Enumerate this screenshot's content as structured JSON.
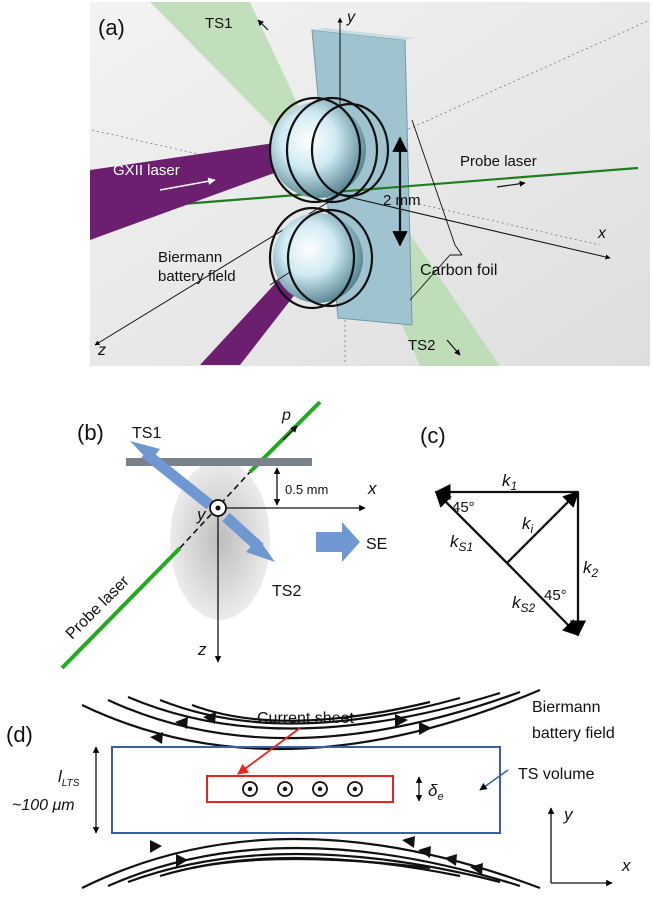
{
  "panel_a": {
    "tag": "(a)",
    "ts1": "TS1",
    "ts2": "TS2",
    "axis_y": "y",
    "axis_x": "x",
    "axis_z": "z",
    "gxii": "GXII laser",
    "probe": "Probe laser",
    "gap": "2 mm",
    "biermann_line1": "Biermann",
    "biermann_line2": "battery field",
    "foil": "Carbon  foil"
  },
  "panel_b": {
    "tag": "(b)",
    "ts1": "TS1",
    "ts2": "TS2",
    "p": "p",
    "dist": "0.5 mm",
    "axis_x": "x",
    "axis_y": "y",
    "axis_z": "z",
    "se": "SE",
    "probe": "Probe laser"
  },
  "panel_c": {
    "tag": "(c)",
    "k1": "k",
    "k1_sub": "1",
    "ki": "k",
    "ki_sub": "i",
    "k2": "k",
    "k2_sub": "2",
    "ks1": "k",
    "ks1_sub": "S1",
    "ks2": "k",
    "ks2_sub": "S2",
    "angle1": "45°",
    "angle2": "45°"
  },
  "panel_d": {
    "tag": "(d)",
    "current_sheet": "Current sheet",
    "biermann_line1": "Biermann",
    "biermann_line2": "battery field",
    "ts_volume": "TS volume",
    "l_main": "l",
    "l_sub": "LTS",
    "l_value": "~100 μm",
    "delta": "δ",
    "delta_sub": "e",
    "axis_y": "y",
    "axis_x": "x"
  }
}
